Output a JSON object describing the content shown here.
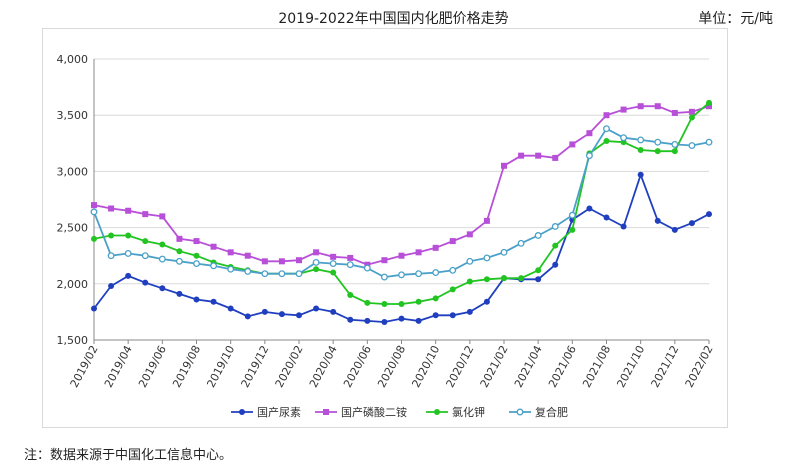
{
  "chart_title": "2019-2022年中国国内化肥价格走势",
  "unit_label": "单位：元/吨",
  "footnote": "注：数据来源于中国化工信息中心。",
  "chart_data": {
    "type": "line",
    "title": "2019-2022年中国国内化肥价格走势",
    "ylim": [
      1500,
      4000
    ],
    "yticks": [
      1500,
      2000,
      2500,
      3000,
      3500,
      4000
    ],
    "ytick_labels": [
      "1,500",
      "2,000",
      "2,500",
      "3,000",
      "3,500",
      "4,000"
    ],
    "grid": true,
    "legend_position": "bottom",
    "x": [
      "2019/02",
      "2019/03",
      "2019/04",
      "2019/05",
      "2019/06",
      "2019/07",
      "2019/08",
      "2019/09",
      "2019/10",
      "2019/11",
      "2019/12",
      "2020/01",
      "2020/02",
      "2020/03",
      "2020/04",
      "2020/05",
      "2020/06",
      "2020/07",
      "2020/08",
      "2020/09",
      "2020/10",
      "2020/11",
      "2020/12",
      "2021/01",
      "2021/02",
      "2021/03",
      "2021/04",
      "2021/05",
      "2021/06",
      "2021/07",
      "2021/08",
      "2021/09",
      "2021/10",
      "2021/11",
      "2021/12",
      "2022/01",
      "2022/02"
    ],
    "xtick_labels": [
      "2019/02",
      "2019/04",
      "2019/06",
      "2019/08",
      "2019/10",
      "2019/12",
      "2020/02",
      "2020/04",
      "2020/06",
      "2020/08",
      "2020/10",
      "2020/12",
      "2021/02",
      "2021/04",
      "2021/06",
      "2021/08",
      "2021/10",
      "2021/12",
      "2022/02"
    ],
    "series": [
      {
        "name": "国产尿素",
        "color": "#1f3fbf",
        "marker": "filled",
        "values": [
          1780,
          1980,
          2070,
          2010,
          1960,
          1910,
          1860,
          1840,
          1780,
          1710,
          1750,
          1730,
          1720,
          1780,
          1750,
          1680,
          1670,
          1660,
          1690,
          1670,
          1720,
          1720,
          1750,
          1840,
          2050,
          2040,
          2040,
          2170,
          2570,
          2670,
          2590,
          2510,
          2970,
          2560,
          2480,
          2540,
          2620
        ]
      },
      {
        "name": "国产磷酸二铵",
        "color": "#b84fd8",
        "marker": "filled-square",
        "values": [
          2700,
          2670,
          2650,
          2620,
          2600,
          2400,
          2380,
          2330,
          2280,
          2250,
          2200,
          2200,
          2210,
          2280,
          2240,
          2230,
          2170,
          2210,
          2250,
          2280,
          2320,
          2380,
          2440,
          2560,
          3050,
          3140,
          3140,
          3120,
          3240,
          3340,
          3500,
          3550,
          3580,
          3580,
          3520,
          3530,
          3580
        ]
      },
      {
        "name": "氯化钾",
        "color": "#22c422",
        "marker": "filled",
        "values": [
          2400,
          2430,
          2430,
          2380,
          2350,
          2290,
          2250,
          2190,
          2150,
          2120,
          2090,
          2090,
          2090,
          2130,
          2100,
          1900,
          1830,
          1820,
          1820,
          1840,
          1870,
          1950,
          2020,
          2040,
          2050,
          2050,
          2120,
          2340,
          2480,
          3160,
          3270,
          3260,
          3190,
          3180,
          3180,
          3480,
          3610
        ]
      },
      {
        "name": "复合肥",
        "color": "#4aa0c8",
        "marker": "hollow",
        "values": [
          2640,
          2250,
          2270,
          2250,
          2220,
          2200,
          2180,
          2160,
          2130,
          2110,
          2090,
          2090,
          2090,
          2190,
          2180,
          2170,
          2140,
          2060,
          2080,
          2090,
          2100,
          2120,
          2200,
          2230,
          2280,
          2360,
          2430,
          2510,
          2610,
          3140,
          3380,
          3300,
          3280,
          3260,
          3240,
          3230,
          3260
        ]
      }
    ]
  }
}
